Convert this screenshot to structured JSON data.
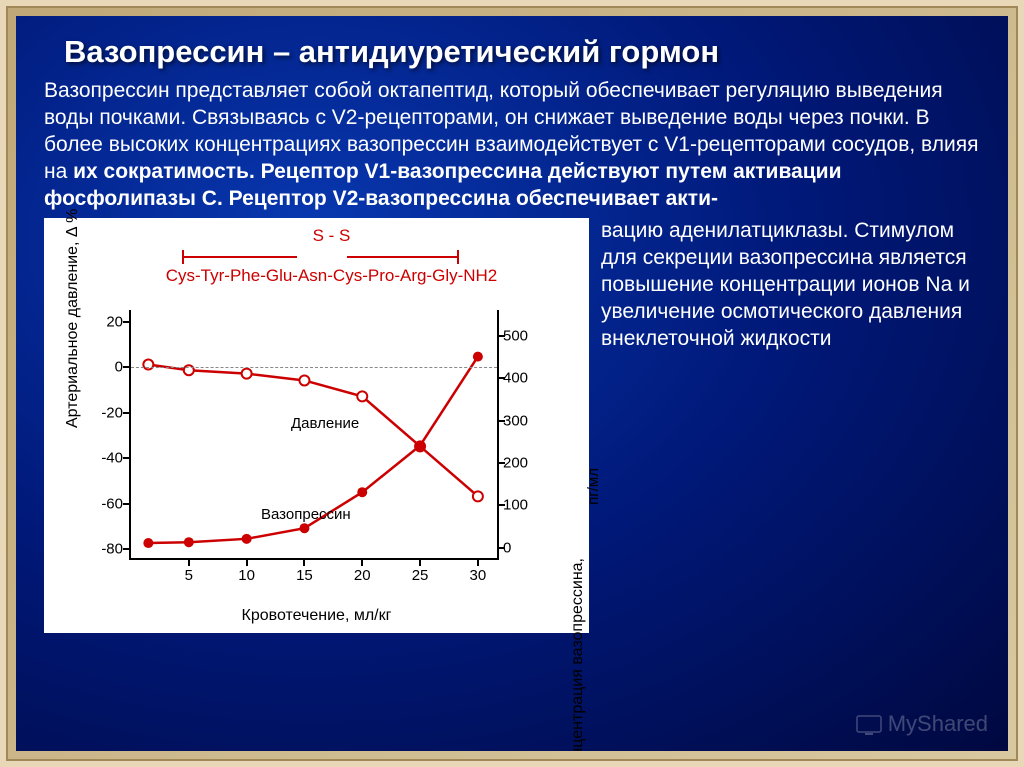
{
  "title": "Вазопрессин – антидиуретический гормон",
  "para": {
    "p1": "Вазопрессин представляет собой октапептид, который обеспечивает регуляцию выведения воды почками. Связываясь с V2-рецепторами, он снижает выведение воды через почки. В более высоких концентрациях вазопрессин взаимодействует с V1-рецепторами сосудов, влияя на ",
    "p1b": "их сократимость. Рецептор V1-вазопрессина действуют путем активации фосфолипазы С. Рецептор V2-вазопрессина обеспечивает акти-"
  },
  "side": "вацию аденилатциклазы. Стимулом для секреции вазопрессина является повышение концентрации ионов Na и увеличение осмотического давления внеклеточной жидкости",
  "peptide": {
    "ss": "S - S",
    "seq": "Cys-Tyr-Phe-Glu-Asn-Cys-Pro-Arg-Gly-NH2"
  },
  "chart": {
    "type": "line",
    "x_label": "Кровотечение, мл/кг",
    "yl_label": "Артериальное давление, Δ %",
    "yr_label": "Концентрация вазопрессина,",
    "yr_label_unit": "пг/мл",
    "x_ticks": [
      5,
      10,
      15,
      20,
      25,
      30
    ],
    "x_range": [
      0,
      32
    ],
    "yl_ticks": [
      20,
      0,
      -20,
      -40,
      -60,
      -80
    ],
    "yl_range": [
      -85,
      25
    ],
    "yr_ticks": [
      500,
      400,
      300,
      200,
      100,
      0
    ],
    "yr_range": [
      -30,
      560
    ],
    "grid_color": "#888888",
    "axis_color": "#000000",
    "background_color": "#ffffff",
    "line_color": "#cc0000",
    "series_pressure": {
      "label": "Давление",
      "label_pos": {
        "x": 160,
        "y": 105
      },
      "marker": "open-circle",
      "points": [
        {
          "x": 1.5,
          "y": 1
        },
        {
          "x": 5,
          "y": -1.5
        },
        {
          "x": 10,
          "y": -3
        },
        {
          "x": 15,
          "y": -6
        },
        {
          "x": 20,
          "y": -13
        },
        {
          "x": 25,
          "y": -35
        },
        {
          "x": 30,
          "y": -57
        }
      ]
    },
    "series_vasopressin": {
      "label": "Вазопрессин",
      "label_pos": {
        "x": 130,
        "y": 196
      },
      "marker": "filled-circle",
      "points": [
        {
          "x": 1.5,
          "y": 10
        },
        {
          "x": 5,
          "y": 12
        },
        {
          "x": 10,
          "y": 20
        },
        {
          "x": 15,
          "y": 45
        },
        {
          "x": 20,
          "y": 130
        },
        {
          "x": 25,
          "y": 240
        },
        {
          "x": 30,
          "y": 450
        }
      ]
    }
  },
  "watermark": "MyShared"
}
